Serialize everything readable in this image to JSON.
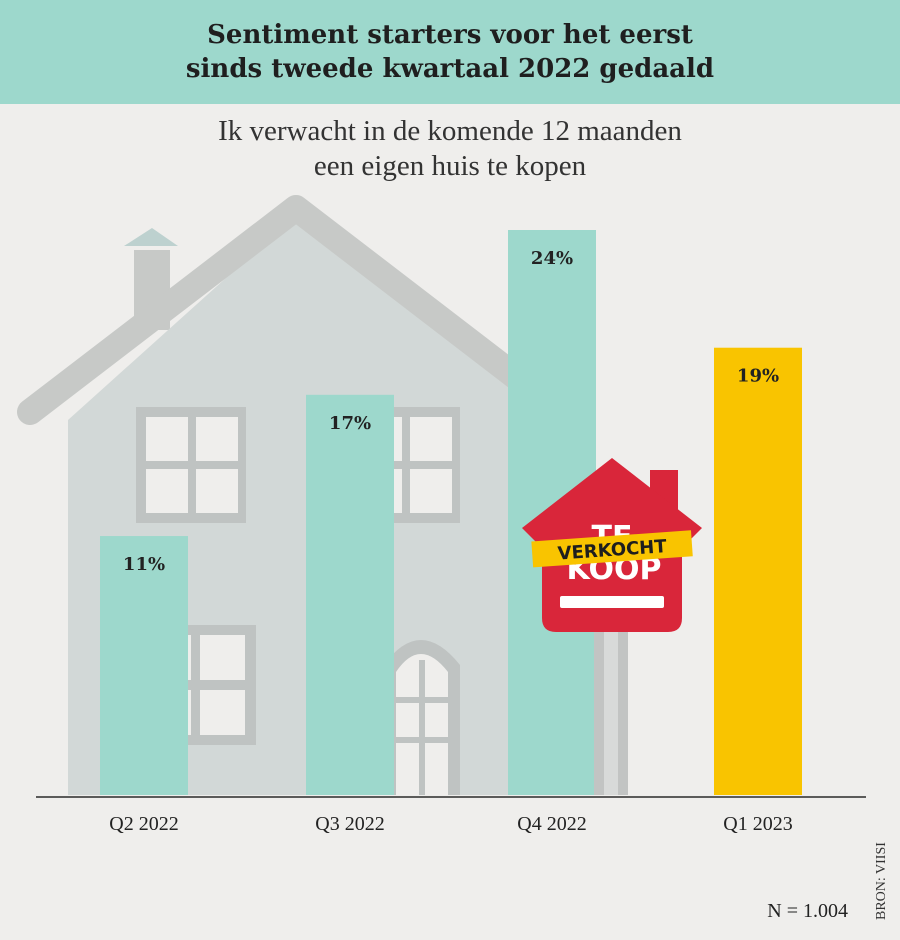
{
  "header": {
    "title_lines": [
      "Sentiment starters voor het eerst",
      "sinds tweede kwartaal 2022 gedaald"
    ]
  },
  "subtitle_lines": [
    "Ik verwacht in de komende 12 maanden",
    "een eigen huis te kopen"
  ],
  "chart_data": {
    "type": "bar",
    "categories": [
      "Q2 2022",
      "Q3 2022",
      "Q4 2022",
      "Q1 2023"
    ],
    "values": [
      11,
      17,
      24,
      19
    ],
    "data_labels": [
      "11%",
      "17%",
      "24%",
      "19%"
    ],
    "colors": [
      "#9dd8cc",
      "#9dd8cc",
      "#9dd8cc",
      "#f9c400"
    ],
    "title": "Sentiment starters voor het eerst sinds tweede kwartaal 2022 gedaald",
    "subtitle": "Ik verwacht in de komende 12 maanden een eigen huis te kopen",
    "xlabel": "",
    "ylabel": "",
    "ylim": [
      0,
      24
    ]
  },
  "sign": {
    "line1": "TE",
    "line2": "KOOP",
    "banner": "VERKOCHT"
  },
  "footer": {
    "n_label": "N = 1.004",
    "source": "BRON: VIISI"
  },
  "colors": {
    "header_bg": "#9dd8cc",
    "background": "#efeeec",
    "house": "#d2d8d7",
    "house_outline": "#c7c9c7",
    "sign_red": "#d9263a",
    "banner_yellow": "#f9c400"
  }
}
